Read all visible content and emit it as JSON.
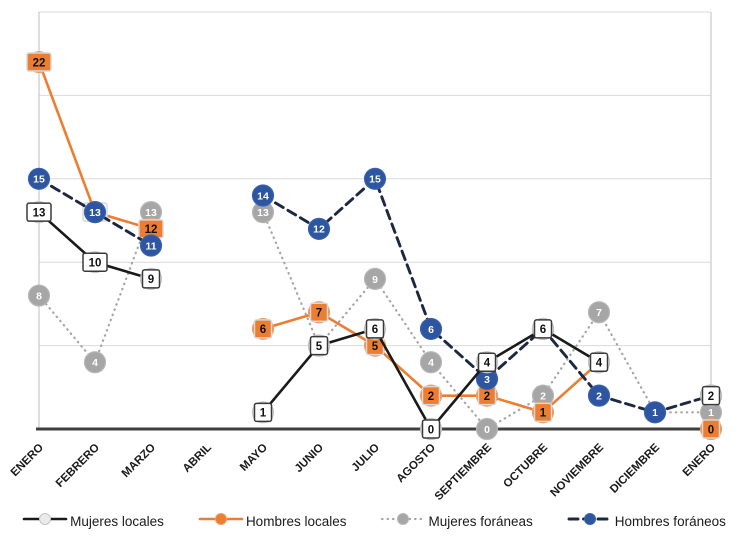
{
  "chart_data": {
    "type": "line",
    "title": "",
    "xlabel": "",
    "ylabel": "",
    "ylim": [
      0,
      25
    ],
    "gridline_values": [
      5,
      10,
      15,
      20,
      25
    ],
    "grid": true,
    "legend_position": "bottom",
    "categories": [
      "ENERO",
      "FEBRERO",
      "MARZO",
      "ABRIL",
      "MAYO",
      "JUNIO",
      "JULIO",
      "AGOSTO",
      "SEPTIEMBRE",
      "OCTUBRE",
      "NOVIEMBRE",
      "DICIEMBRE",
      "ENERO"
    ],
    "series": [
      {
        "name": "Mujeres locales",
        "line_style": "solid",
        "line_color": "#1a1a1a",
        "line_width": 2.6,
        "marker": "square-label",
        "point_fill": "#ebebeb",
        "point_border": "#c4c4c4",
        "box_fill": "#ffffff",
        "box_border": "#3a3a3a",
        "label_text_color": "#111111",
        "values": [
          13,
          10,
          9,
          null,
          1,
          5,
          6,
          0,
          4,
          6,
          4,
          null,
          2
        ]
      },
      {
        "name": "Hombres locales",
        "line_style": "solid",
        "line_color": "#ED7D31",
        "line_width": 2.6,
        "marker": "square-label",
        "point_fill": "#ED7D31",
        "point_border": "#e9a06c",
        "box_fill": "#ED7D31",
        "box_border": "#d8d8d8",
        "label_text_color": "#111111",
        "values": [
          22,
          13,
          12,
          null,
          6,
          7,
          5,
          2,
          2,
          1,
          4,
          null,
          0
        ],
        "label_overrides": {
          "1": {
            "fill": "#ffffff"
          }
        }
      },
      {
        "name": "Mujeres foráneas",
        "line_style": "dotted",
        "line_color": "#a6a6a6",
        "line_width": 2.2,
        "marker": "circle",
        "point_fill": "#a6a6a6",
        "point_border": "#b7b7b7",
        "label_text_color": "#ffffff",
        "values": [
          8,
          4,
          13,
          null,
          13,
          5,
          9,
          4,
          0,
          2,
          7,
          1,
          1
        ]
      },
      {
        "name": "Hombres foráneos",
        "line_style": "dashed",
        "line_color": "#1c2742",
        "line_width": 2.9,
        "marker": "circle",
        "point_fill": "#2e55a0",
        "point_border": "#3a62b0",
        "label_text_color": "#ffffff",
        "values": [
          15,
          13,
          11,
          null,
          14,
          12,
          15,
          6,
          3,
          6,
          2,
          1,
          2
        ]
      }
    ],
    "draw_order": [
      2,
      1,
      3,
      0
    ],
    "colors": {
      "gridline": "#d9d9d9",
      "plot_border": "#c9c9c9",
      "axis_line": "#3f3f3f",
      "background": "#ffffff"
    }
  }
}
